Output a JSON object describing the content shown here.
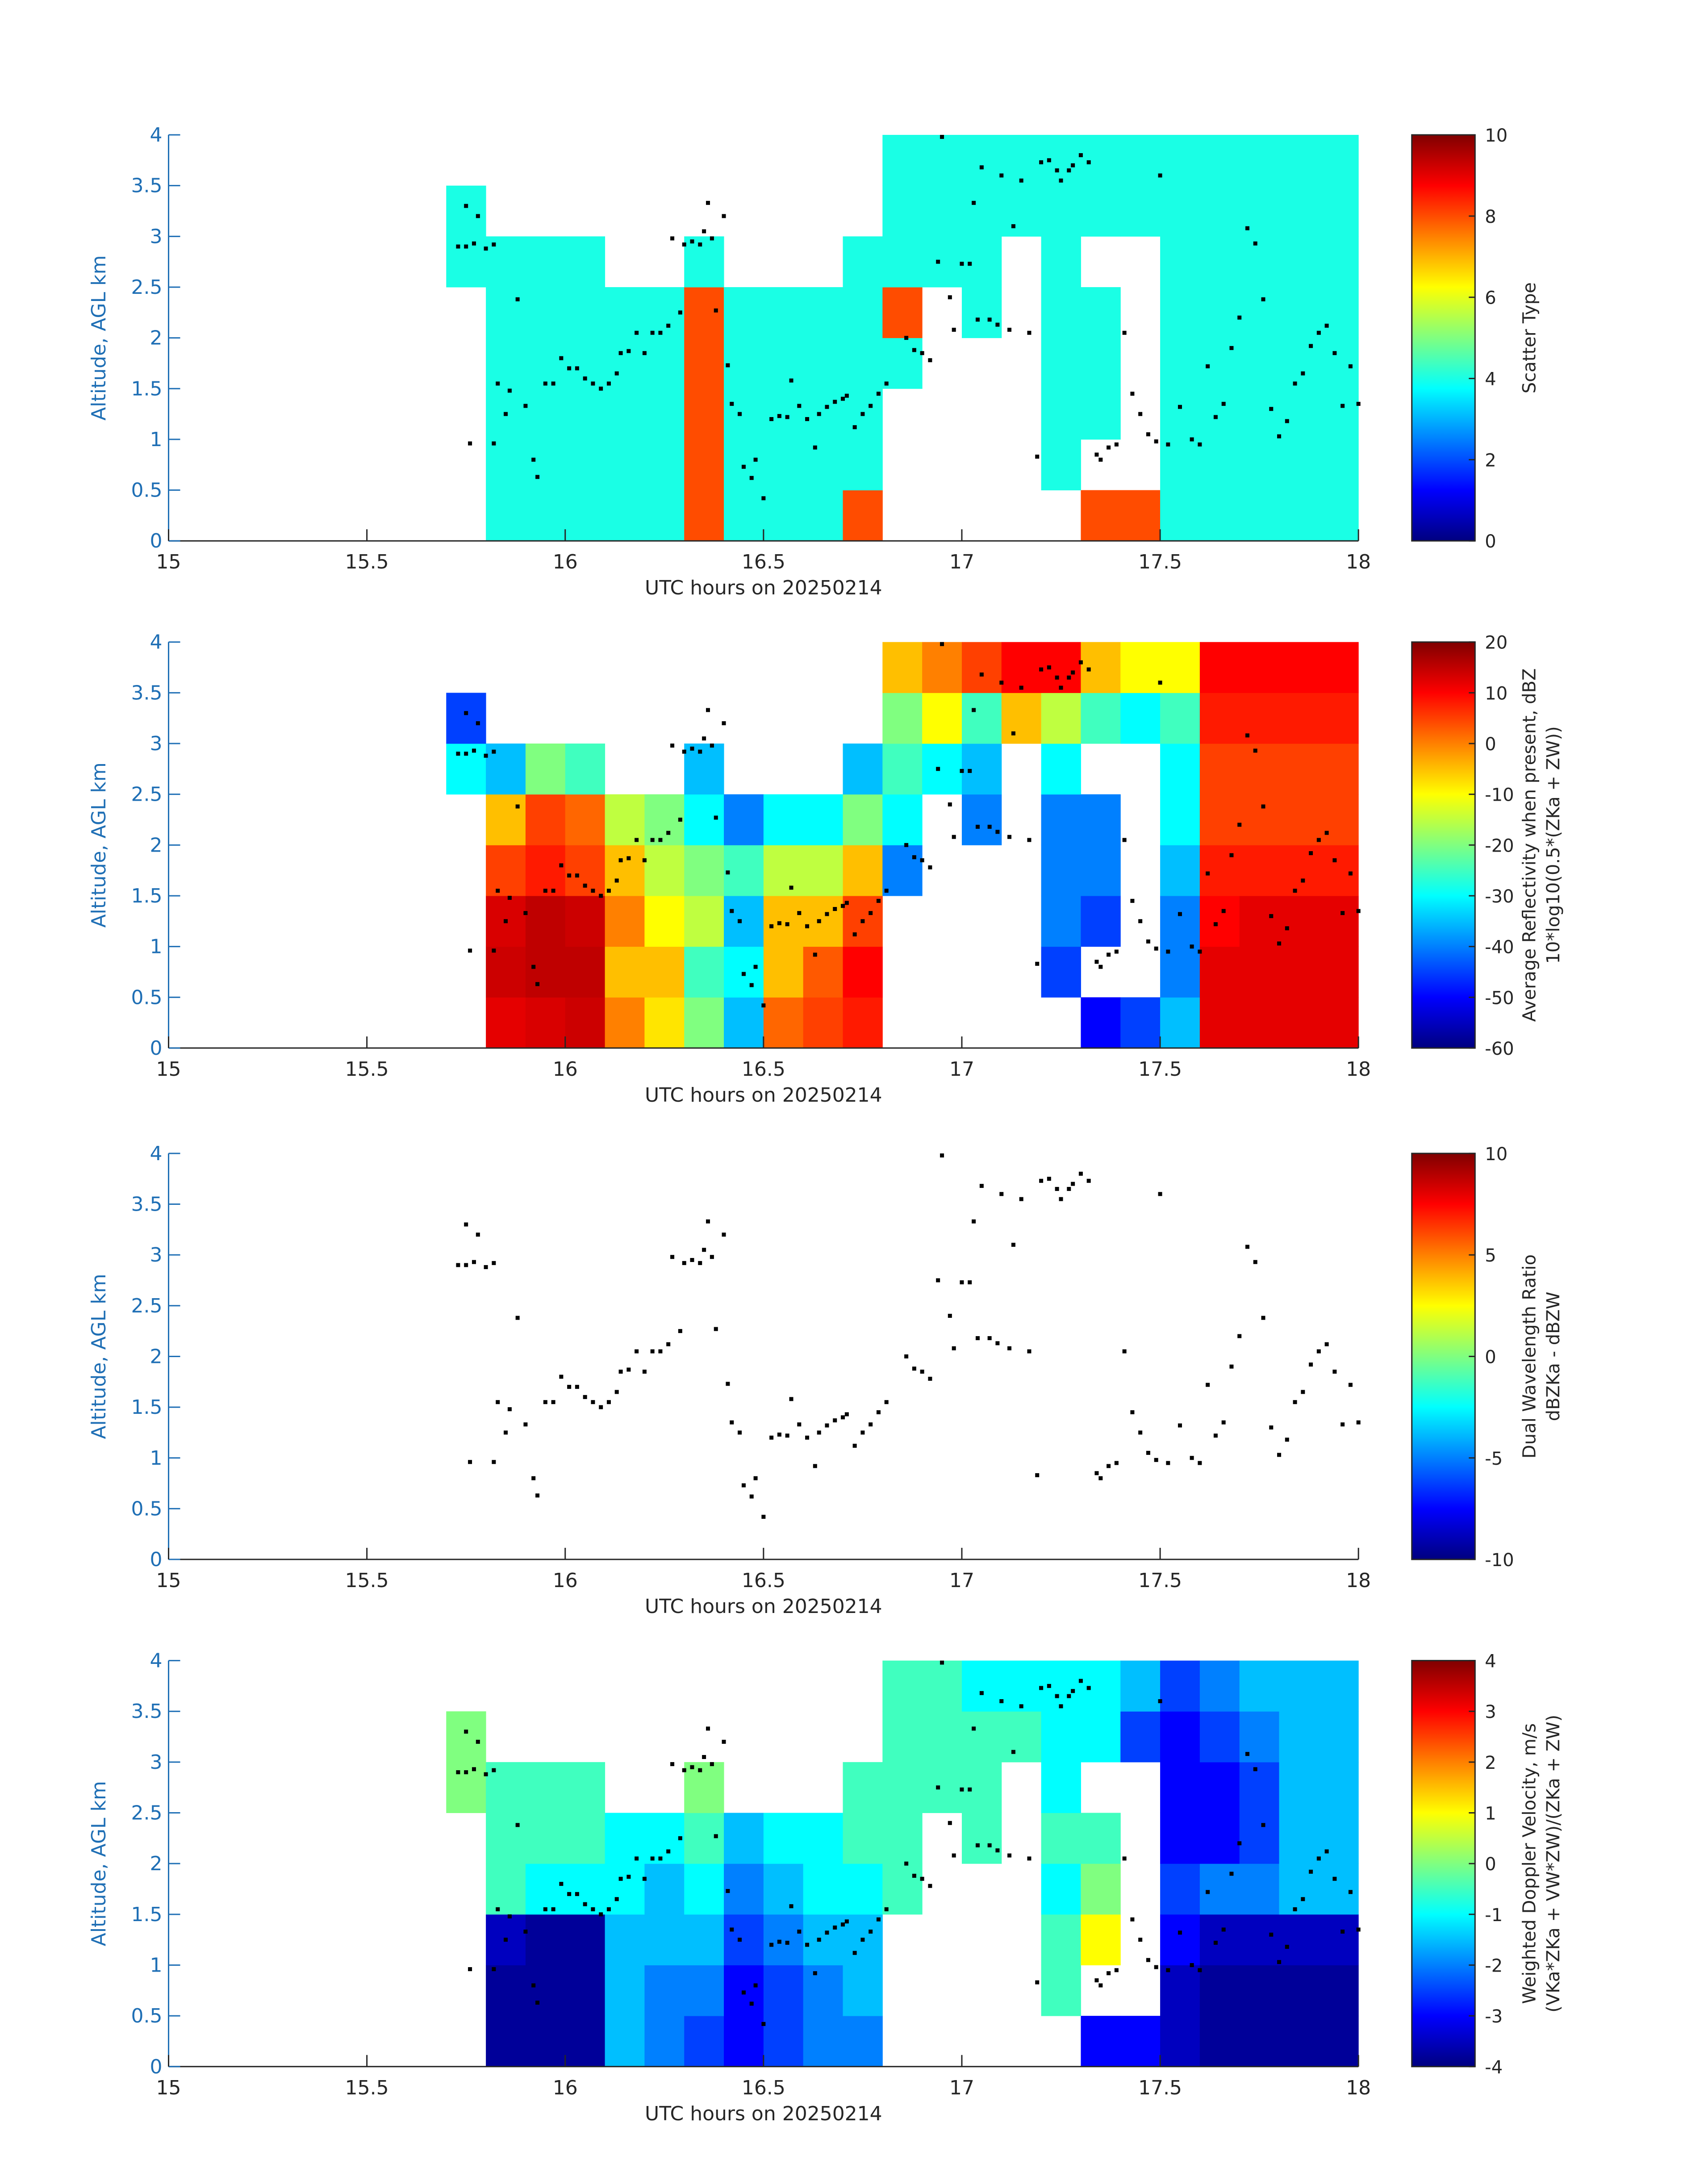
{
  "chart_data": {
    "type": "heatmap",
    "xlabel": "UTC hours on 20250214",
    "ylabel": "Altitude, AGL km",
    "xlim": [
      15,
      18
    ],
    "xticks": [
      15,
      15.5,
      16,
      16.5,
      17,
      17.5,
      18
    ],
    "ylim": [
      0,
      4
    ],
    "yticks": [
      0,
      0.5,
      1,
      1.5,
      2,
      2.5,
      3,
      3.5,
      4
    ],
    "colormap": "jet",
    "x": [
      15.75,
      15.85,
      15.95,
      16.05,
      16.15,
      16.25,
      16.35,
      16.45,
      16.55,
      16.65,
      16.75,
      16.85,
      16.95,
      17.05,
      17.15,
      17.25,
      17.35,
      17.45,
      17.55,
      17.65,
      17.75,
      17.85,
      17.95
    ],
    "y": [
      0.25,
      0.75,
      1.25,
      1.75,
      2.25,
      2.75,
      3.25,
      3.75
    ],
    "points": {
      "color": "#000000",
      "x": [
        15.73,
        15.75,
        15.75,
        15.77,
        15.78,
        15.8,
        15.82,
        15.76,
        15.82,
        15.83,
        15.85,
        15.86,
        15.88,
        15.9,
        15.92,
        15.93,
        15.95,
        15.97,
        15.99,
        16.01,
        16.03,
        16.05,
        16.07,
        16.09,
        16.11,
        16.13,
        16.14,
        16.16,
        16.18,
        16.2,
        16.22,
        16.24,
        16.26,
        16.27,
        16.29,
        16.3,
        16.32,
        16.34,
        16.35,
        16.36,
        16.37,
        16.38,
        16.4,
        16.41,
        16.42,
        16.44,
        16.45,
        16.47,
        16.48,
        16.5,
        16.52,
        16.54,
        16.56,
        16.57,
        16.59,
        16.61,
        16.63,
        16.64,
        16.66,
        16.68,
        16.7,
        16.71,
        16.73,
        16.75,
        16.77,
        16.79,
        16.81,
        16.86,
        16.88,
        16.9,
        16.92,
        16.94,
        16.95,
        16.97,
        16.98,
        17.0,
        17.02,
        17.03,
        17.04,
        17.05,
        17.07,
        17.09,
        17.1,
        17.12,
        17.13,
        17.15,
        17.17,
        17.19,
        17.2,
        17.22,
        17.24,
        17.25,
        17.27,
        17.28,
        17.3,
        17.32,
        17.34,
        17.35,
        17.37,
        17.39,
        17.41,
        17.43,
        17.45,
        17.47,
        17.49,
        17.5,
        17.52,
        17.55,
        17.58,
        17.6,
        17.62,
        17.64,
        17.66,
        17.68,
        17.7,
        17.72,
        17.74,
        17.76,
        17.78,
        17.8,
        17.82,
        17.84,
        17.86,
        17.88,
        17.9,
        17.92,
        17.94,
        17.96,
        17.98,
        18.0
      ],
      "y": [
        2.9,
        2.9,
        3.3,
        2.93,
        3.2,
        2.88,
        2.92,
        0.96,
        0.96,
        1.55,
        1.25,
        1.48,
        2.38,
        1.33,
        0.8,
        0.63,
        1.55,
        1.55,
        1.8,
        1.7,
        1.7,
        1.6,
        1.55,
        1.5,
        1.55,
        1.65,
        1.85,
        1.87,
        2.05,
        1.85,
        2.05,
        2.05,
        2.12,
        2.98,
        2.25,
        2.92,
        2.95,
        2.92,
        3.05,
        3.33,
        2.98,
        2.27,
        3.2,
        1.73,
        1.35,
        1.25,
        0.73,
        0.62,
        0.8,
        0.42,
        1.2,
        1.23,
        1.22,
        1.58,
        1.33,
        1.2,
        0.92,
        1.25,
        1.32,
        1.37,
        1.4,
        1.43,
        1.12,
        1.25,
        1.33,
        1.45,
        1.55,
        2.0,
        1.88,
        1.85,
        1.78,
        2.75,
        3.98,
        2.4,
        2.08,
        2.73,
        2.73,
        3.33,
        2.18,
        3.68,
        2.18,
        2.13,
        3.6,
        2.08,
        3.1,
        3.55,
        2.05,
        0.83,
        3.73,
        3.75,
        3.65,
        3.55,
        3.65,
        3.7,
        3.8,
        3.73,
        0.85,
        0.8,
        0.92,
        0.95,
        2.05,
        1.45,
        1.25,
        1.05,
        0.98,
        3.6,
        0.95,
        1.32,
        1.0,
        0.95,
        1.72,
        1.22,
        1.35,
        1.9,
        2.2,
        3.08,
        2.93,
        2.38,
        1.3,
        1.03,
        1.18,
        1.55,
        1.65,
        1.92,
        2.05,
        2.12,
        1.85,
        1.33,
        1.72,
        1.35
      ]
    },
    "panels": [
      {
        "colorbar_label": [
          "Scatter Type"
        ],
        "clim": [
          0,
          10
        ],
        "cticks": [
          0,
          2,
          4,
          6,
          8,
          10
        ],
        "values": [
          [
            null,
            4,
            4,
            4,
            4,
            4,
            8,
            4,
            4,
            4,
            8,
            null,
            null,
            null,
            null,
            null,
            8,
            8,
            4,
            4,
            4,
            4,
            4
          ],
          [
            null,
            4,
            4,
            4,
            4,
            4,
            8,
            4,
            4,
            4,
            4,
            null,
            null,
            null,
            null,
            4,
            null,
            null,
            4,
            4,
            4,
            4,
            4
          ],
          [
            null,
            4,
            4,
            4,
            4,
            4,
            8,
            4,
            4,
            4,
            4,
            null,
            null,
            null,
            null,
            4,
            4,
            null,
            4,
            4,
            4,
            4,
            4
          ],
          [
            null,
            4,
            4,
            4,
            4,
            4,
            8,
            4,
            4,
            4,
            4,
            4,
            null,
            null,
            null,
            4,
            4,
            null,
            4,
            4,
            4,
            4,
            4
          ],
          [
            null,
            4,
            4,
            4,
            4,
            4,
            8,
            4,
            4,
            4,
            4,
            8,
            null,
            4,
            null,
            4,
            4,
            null,
            4,
            4,
            4,
            4,
            4
          ],
          [
            4,
            4,
            4,
            4,
            null,
            null,
            4,
            null,
            null,
            null,
            4,
            4,
            4,
            4,
            null,
            4,
            null,
            null,
            4,
            4,
            4,
            4,
            4
          ],
          [
            4,
            null,
            null,
            null,
            null,
            null,
            null,
            null,
            null,
            null,
            null,
            4,
            4,
            4,
            4,
            4,
            4,
            4,
            4,
            4,
            4,
            4,
            4
          ],
          [
            null,
            null,
            null,
            null,
            null,
            null,
            null,
            null,
            null,
            null,
            null,
            4,
            4,
            4,
            4,
            4,
            4,
            4,
            4,
            4,
            4,
            4,
            4
          ]
        ]
      },
      {
        "colorbar_label": [
          "Average Reflectivity when present, dBZ",
          "10*log10(0.5*(ZKa + ZW))"
        ],
        "clim": [
          -60,
          20
        ],
        "cticks": [
          -60,
          -50,
          -40,
          -30,
          -20,
          -10,
          0,
          10,
          20
        ],
        "values": [
          [
            null,
            12,
            13,
            14,
            0,
            -8,
            -20,
            -35,
            2,
            5,
            8,
            null,
            null,
            null,
            null,
            null,
            -50,
            -45,
            -35,
            12,
            12,
            12,
            12
          ],
          [
            null,
            14,
            15,
            15,
            -5,
            -5,
            -25,
            -30,
            -5,
            3,
            10,
            null,
            null,
            null,
            null,
            -45,
            null,
            null,
            -40,
            12,
            12,
            12,
            12
          ],
          [
            null,
            13,
            15,
            14,
            0,
            -10,
            -15,
            -35,
            -5,
            -5,
            5,
            null,
            null,
            null,
            null,
            -40,
            -45,
            null,
            -40,
            10,
            12,
            12,
            12
          ],
          [
            null,
            5,
            8,
            5,
            -5,
            -15,
            -20,
            -25,
            -15,
            -15,
            -5,
            -40,
            null,
            null,
            null,
            -40,
            -40,
            null,
            -35,
            8,
            8,
            8,
            8
          ],
          [
            null,
            -5,
            5,
            2,
            -15,
            -20,
            -30,
            -40,
            -30,
            -30,
            -20,
            -30,
            null,
            -40,
            null,
            -40,
            -40,
            null,
            -30,
            5,
            5,
            5,
            5
          ],
          [
            -30,
            -35,
            -20,
            -25,
            null,
            null,
            -35,
            null,
            null,
            null,
            -35,
            -25,
            -30,
            -35,
            null,
            -30,
            null,
            null,
            -30,
            5,
            5,
            5,
            5
          ],
          [
            -45,
            null,
            null,
            null,
            null,
            null,
            null,
            null,
            null,
            null,
            null,
            -20,
            -10,
            -25,
            -5,
            -15,
            -25,
            -30,
            -25,
            8,
            8,
            8,
            8
          ],
          [
            null,
            null,
            null,
            null,
            null,
            null,
            null,
            null,
            null,
            null,
            null,
            -5,
            0,
            5,
            10,
            10,
            -5,
            -10,
            -10,
            10,
            10,
            10,
            10
          ]
        ]
      },
      {
        "colorbar_label": [
          "Dual Wavelength Ratio",
          "dBZKa - dBZW"
        ],
        "clim": [
          -10,
          10
        ],
        "cticks": [
          -10,
          -5,
          0,
          5,
          10
        ]
      },
      {
        "colorbar_label": [
          "Weighted Doppler Velocity, m/s",
          "(VKa*ZKa + VW*ZW)/(ZKa + ZW)"
        ],
        "clim": [
          -4,
          4
        ],
        "cticks": [
          -4,
          -3,
          -2,
          -1,
          0,
          1,
          2,
          3,
          4
        ],
        "values": [
          [
            null,
            -3.8,
            -3.8,
            -3.8,
            -1.5,
            -2,
            -2.5,
            -3,
            -2.5,
            -2,
            -2,
            null,
            null,
            null,
            null,
            null,
            -3,
            -3,
            -3.5,
            -3.8,
            -3.8,
            -3.8,
            -3.8
          ],
          [
            null,
            -3.8,
            -3.8,
            -3.8,
            -1.5,
            -2,
            -2,
            -3,
            -2.5,
            -2,
            -1.5,
            null,
            null,
            null,
            null,
            -0.5,
            null,
            null,
            -3.5,
            -3.8,
            -3.8,
            -3.8,
            -3.8
          ],
          [
            null,
            -3.5,
            -3.8,
            -3.8,
            -1.5,
            -1.5,
            -1.5,
            -2.5,
            -2,
            -1.5,
            -1.5,
            null,
            null,
            null,
            null,
            -0.5,
            1,
            null,
            -3,
            -3.5,
            -3.5,
            -3.5,
            -3.5
          ],
          [
            null,
            -0.5,
            -1,
            -1,
            -1,
            -1.5,
            -1,
            -2,
            -1.5,
            -1,
            -1,
            -0.5,
            null,
            null,
            null,
            -1,
            0,
            null,
            -2.5,
            -2,
            -2,
            -1.5,
            -1.5
          ],
          [
            null,
            -0.5,
            -0.5,
            -0.5,
            -1,
            -1,
            -0.5,
            -1.5,
            -1,
            -1,
            -0.5,
            -0.5,
            null,
            -0.5,
            null,
            -0.5,
            -0.5,
            null,
            -3,
            -3,
            -2.5,
            -1.5,
            -1.5
          ],
          [
            0,
            -0.5,
            -0.5,
            -0.5,
            null,
            null,
            0,
            null,
            null,
            null,
            -0.5,
            -0.5,
            -0.5,
            -0.5,
            null,
            -1,
            null,
            null,
            -3,
            -3,
            -2.5,
            -1.5,
            -1.5
          ],
          [
            0,
            null,
            null,
            null,
            null,
            null,
            null,
            null,
            null,
            null,
            null,
            -0.5,
            -0.5,
            -0.5,
            -0.5,
            -1,
            -1,
            -2.5,
            -3,
            -2.5,
            -2,
            -1.5,
            -1.5
          ],
          [
            null,
            null,
            null,
            null,
            null,
            null,
            null,
            null,
            null,
            null,
            null,
            -0.5,
            -0.5,
            -1,
            -1,
            -1,
            -1,
            -1.5,
            -2.5,
            -2,
            -1.5,
            -1.5,
            -1.5
          ]
        ]
      }
    ]
  }
}
